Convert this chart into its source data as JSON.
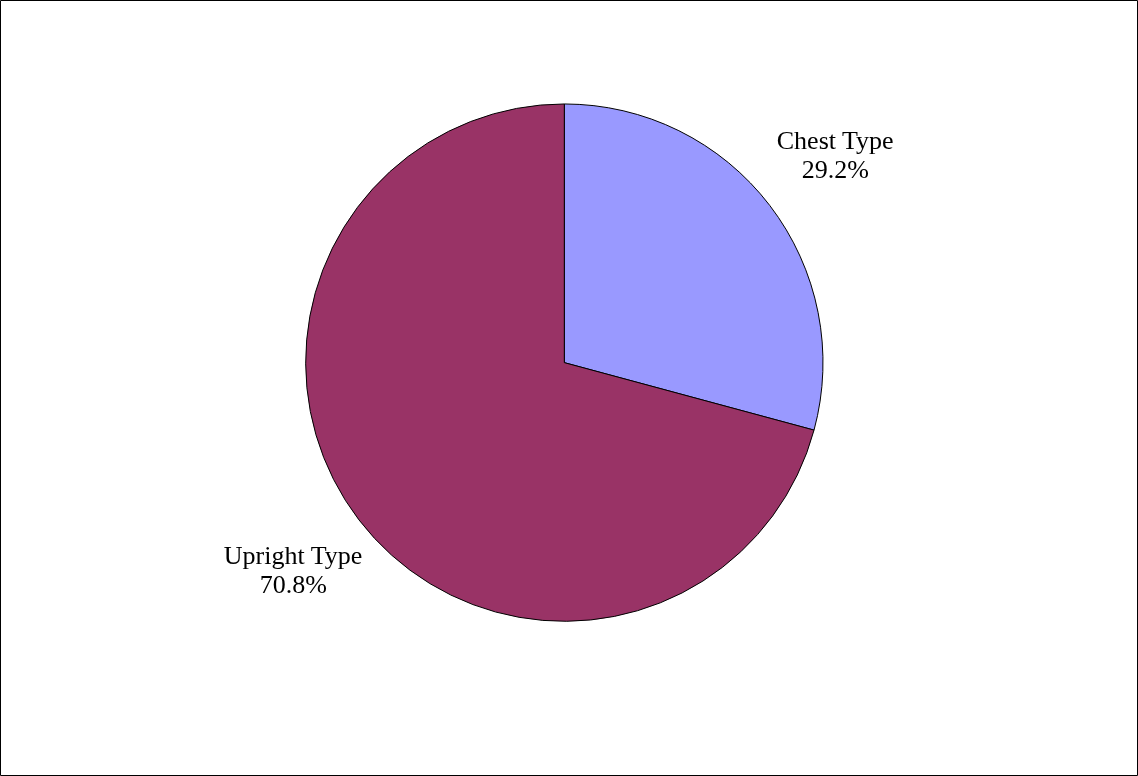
{
  "chart_data": {
    "type": "pie",
    "categories": [
      "Chest Type",
      "Upright Type"
    ],
    "values": [
      29.2,
      70.8
    ],
    "colors": [
      "#9999ff",
      "#993366"
    ],
    "value_labels": [
      "29.2%",
      "70.8%"
    ]
  }
}
